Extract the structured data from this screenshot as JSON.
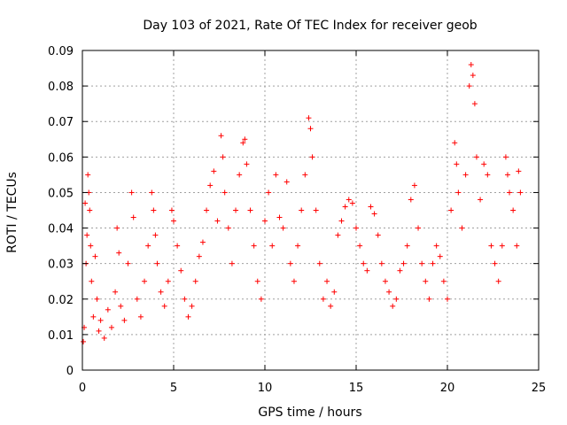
{
  "chart_data": {
    "type": "scatter",
    "title": "Day 103 of 2021, Rate Of TEC Index for receiver geob",
    "xlabel": "GPS time / hours",
    "ylabel": "ROTI / TECUs",
    "xlim": [
      0,
      25
    ],
    "ylim": [
      0,
      0.09
    ],
    "xticks": [
      0,
      5,
      10,
      15,
      20,
      25
    ],
    "xtick_labels": [
      "0",
      "5",
      "10",
      "15",
      "20",
      "25"
    ],
    "yticks": [
      0,
      0.01,
      0.02,
      0.03,
      0.04,
      0.05,
      0.06,
      0.07,
      0.08,
      0.09
    ],
    "ytick_labels": [
      "0",
      "0.01",
      "0.02",
      "0.03",
      "0.04",
      "0.05",
      "0.06",
      "0.07",
      "0.08",
      "0.09"
    ],
    "grid": true,
    "marker": "plus",
    "color": "#ff0000",
    "series": [
      {
        "points": [
          [
            0.05,
            0.008
          ],
          [
            0.1,
            0.012
          ],
          [
            0.15,
            0.047
          ],
          [
            0.2,
            0.03
          ],
          [
            0.25,
            0.038
          ],
          [
            0.3,
            0.055
          ],
          [
            0.35,
            0.05
          ],
          [
            0.4,
            0.045
          ],
          [
            0.45,
            0.035
          ],
          [
            0.5,
            0.025
          ],
          [
            0.6,
            0.015
          ],
          [
            0.7,
            0.032
          ],
          [
            0.8,
            0.02
          ],
          [
            0.9,
            0.011
          ],
          [
            1.0,
            0.014
          ],
          [
            1.2,
            0.009
          ],
          [
            1.4,
            0.017
          ],
          [
            1.6,
            0.012
          ],
          [
            1.8,
            0.022
          ],
          [
            1.9,
            0.04
          ],
          [
            2.0,
            0.033
          ],
          [
            2.1,
            0.018
          ],
          [
            2.3,
            0.014
          ],
          [
            2.5,
            0.03
          ],
          [
            2.7,
            0.05
          ],
          [
            2.8,
            0.043
          ],
          [
            3.0,
            0.02
          ],
          [
            3.2,
            0.015
          ],
          [
            3.4,
            0.025
          ],
          [
            3.6,
            0.035
          ],
          [
            3.8,
            0.05
          ],
          [
            3.9,
            0.045
          ],
          [
            4.0,
            0.038
          ],
          [
            4.1,
            0.03
          ],
          [
            4.3,
            0.022
          ],
          [
            4.5,
            0.018
          ],
          [
            4.7,
            0.025
          ],
          [
            4.9,
            0.045
          ],
          [
            5.0,
            0.042
          ],
          [
            5.2,
            0.035
          ],
          [
            5.4,
            0.028
          ],
          [
            5.6,
            0.02
          ],
          [
            5.8,
            0.015
          ],
          [
            6.0,
            0.018
          ],
          [
            6.2,
            0.025
          ],
          [
            6.4,
            0.032
          ],
          [
            6.6,
            0.036
          ],
          [
            6.8,
            0.045
          ],
          [
            7.0,
            0.052
          ],
          [
            7.2,
            0.056
          ],
          [
            7.4,
            0.042
          ],
          [
            7.6,
            0.066
          ],
          [
            7.7,
            0.06
          ],
          [
            7.8,
            0.05
          ],
          [
            8.0,
            0.04
          ],
          [
            8.2,
            0.03
          ],
          [
            8.4,
            0.045
          ],
          [
            8.6,
            0.055
          ],
          [
            8.8,
            0.064
          ],
          [
            8.9,
            0.065
          ],
          [
            9.0,
            0.058
          ],
          [
            9.2,
            0.045
          ],
          [
            9.4,
            0.035
          ],
          [
            9.6,
            0.025
          ],
          [
            9.8,
            0.02
          ],
          [
            10.0,
            0.042
          ],
          [
            10.2,
            0.05
          ],
          [
            10.4,
            0.035
          ],
          [
            10.6,
            0.055
          ],
          [
            10.8,
            0.043
          ],
          [
            11.0,
            0.04
          ],
          [
            11.2,
            0.053
          ],
          [
            11.4,
            0.03
          ],
          [
            11.6,
            0.025
          ],
          [
            11.8,
            0.035
          ],
          [
            12.0,
            0.045
          ],
          [
            12.2,
            0.055
          ],
          [
            12.4,
            0.071
          ],
          [
            12.5,
            0.068
          ],
          [
            12.6,
            0.06
          ],
          [
            12.8,
            0.045
          ],
          [
            13.0,
            0.03
          ],
          [
            13.2,
            0.02
          ],
          [
            13.4,
            0.025
          ],
          [
            13.6,
            0.018
          ],
          [
            13.8,
            0.022
          ],
          [
            14.0,
            0.038
          ],
          [
            14.2,
            0.042
          ],
          [
            14.4,
            0.046
          ],
          [
            14.6,
            0.048
          ],
          [
            14.8,
            0.047
          ],
          [
            15.0,
            0.04
          ],
          [
            15.2,
            0.035
          ],
          [
            15.4,
            0.03
          ],
          [
            15.6,
            0.028
          ],
          [
            15.8,
            0.046
          ],
          [
            16.0,
            0.044
          ],
          [
            16.2,
            0.038
          ],
          [
            16.4,
            0.03
          ],
          [
            16.6,
            0.025
          ],
          [
            16.8,
            0.022
          ],
          [
            17.0,
            0.018
          ],
          [
            17.2,
            0.02
          ],
          [
            17.4,
            0.028
          ],
          [
            17.6,
            0.03
          ],
          [
            17.8,
            0.035
          ],
          [
            18.0,
            0.048
          ],
          [
            18.2,
            0.052
          ],
          [
            18.4,
            0.04
          ],
          [
            18.6,
            0.03
          ],
          [
            18.8,
            0.025
          ],
          [
            19.0,
            0.02
          ],
          [
            19.2,
            0.03
          ],
          [
            19.4,
            0.035
          ],
          [
            19.6,
            0.032
          ],
          [
            19.8,
            0.025
          ],
          [
            20.0,
            0.02
          ],
          [
            20.2,
            0.045
          ],
          [
            20.4,
            0.064
          ],
          [
            20.5,
            0.058
          ],
          [
            20.6,
            0.05
          ],
          [
            20.8,
            0.04
          ],
          [
            21.0,
            0.055
          ],
          [
            21.2,
            0.08
          ],
          [
            21.3,
            0.086
          ],
          [
            21.4,
            0.083
          ],
          [
            21.5,
            0.075
          ],
          [
            21.6,
            0.06
          ],
          [
            21.8,
            0.048
          ],
          [
            22.0,
            0.058
          ],
          [
            22.2,
            0.055
          ],
          [
            22.4,
            0.035
          ],
          [
            22.6,
            0.03
          ],
          [
            22.8,
            0.025
          ],
          [
            23.0,
            0.035
          ],
          [
            23.2,
            0.06
          ],
          [
            23.3,
            0.055
          ],
          [
            23.4,
            0.05
          ],
          [
            23.6,
            0.045
          ],
          [
            23.8,
            0.035
          ],
          [
            23.9,
            0.056
          ],
          [
            24.0,
            0.05
          ]
        ]
      }
    ]
  }
}
